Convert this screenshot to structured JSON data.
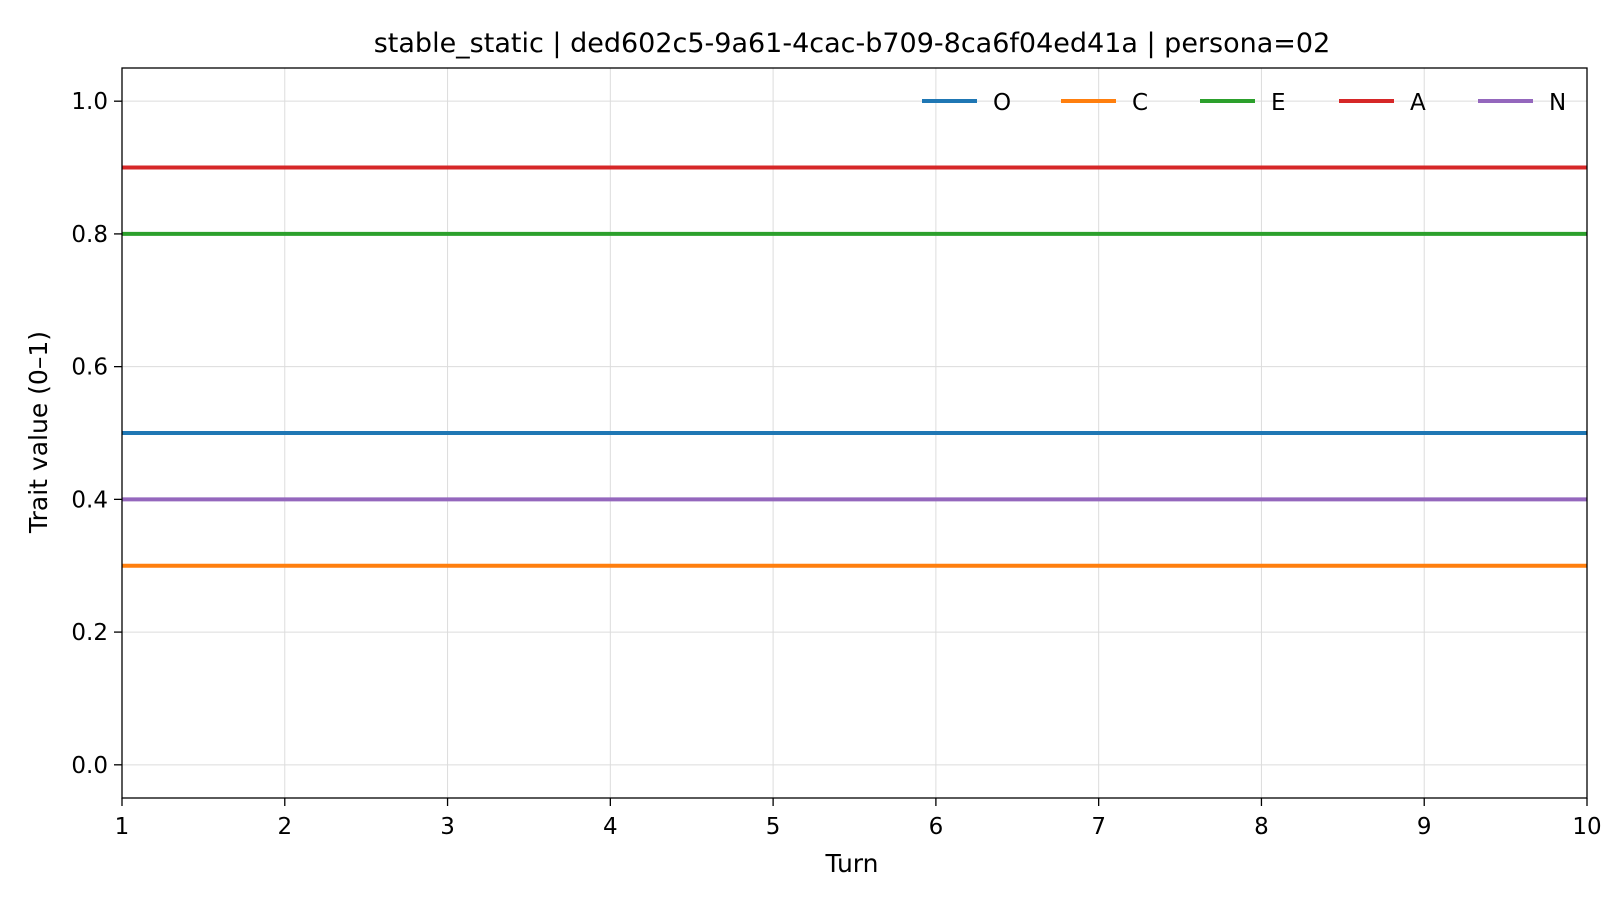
{
  "chart_data": {
    "type": "line",
    "title": "stable_static | ded602c5-9a61-4cac-b709-8ca6f04ed41a | persona=02",
    "xlabel": "Turn",
    "ylabel": "Trait value (0–1)",
    "xlim": [
      1,
      10
    ],
    "ylim": [
      -0.05,
      1.05
    ],
    "x": [
      1,
      2,
      3,
      4,
      5,
      6,
      7,
      8,
      9,
      10
    ],
    "x_ticks": [
      "1",
      "2",
      "3",
      "4",
      "5",
      "6",
      "7",
      "8",
      "9",
      "10"
    ],
    "y_ticks": [
      "0.0",
      "0.2",
      "0.4",
      "0.6",
      "0.8",
      "1.0"
    ],
    "y_tick_values": [
      0.0,
      0.2,
      0.4,
      0.6,
      0.8,
      1.0
    ],
    "grid": true,
    "legend_placement": "top-right",
    "series": [
      {
        "name": "O",
        "color": "#1f77b4",
        "values": [
          0.5,
          0.5,
          0.5,
          0.5,
          0.5,
          0.5,
          0.5,
          0.5,
          0.5,
          0.5
        ]
      },
      {
        "name": "C",
        "color": "#ff7f0e",
        "values": [
          0.3,
          0.3,
          0.3,
          0.3,
          0.3,
          0.3,
          0.3,
          0.3,
          0.3,
          0.3
        ]
      },
      {
        "name": "E",
        "color": "#2ca02c",
        "values": [
          0.8,
          0.8,
          0.8,
          0.8,
          0.8,
          0.8,
          0.8,
          0.8,
          0.8,
          0.8
        ]
      },
      {
        "name": "A",
        "color": "#d62728",
        "values": [
          0.9,
          0.9,
          0.9,
          0.9,
          0.9,
          0.9,
          0.9,
          0.9,
          0.9,
          0.9
        ]
      },
      {
        "name": "N",
        "color": "#9467bd",
        "values": [
          0.4,
          0.4,
          0.4,
          0.4,
          0.4,
          0.4,
          0.4,
          0.4,
          0.4,
          0.4
        ]
      }
    ]
  }
}
